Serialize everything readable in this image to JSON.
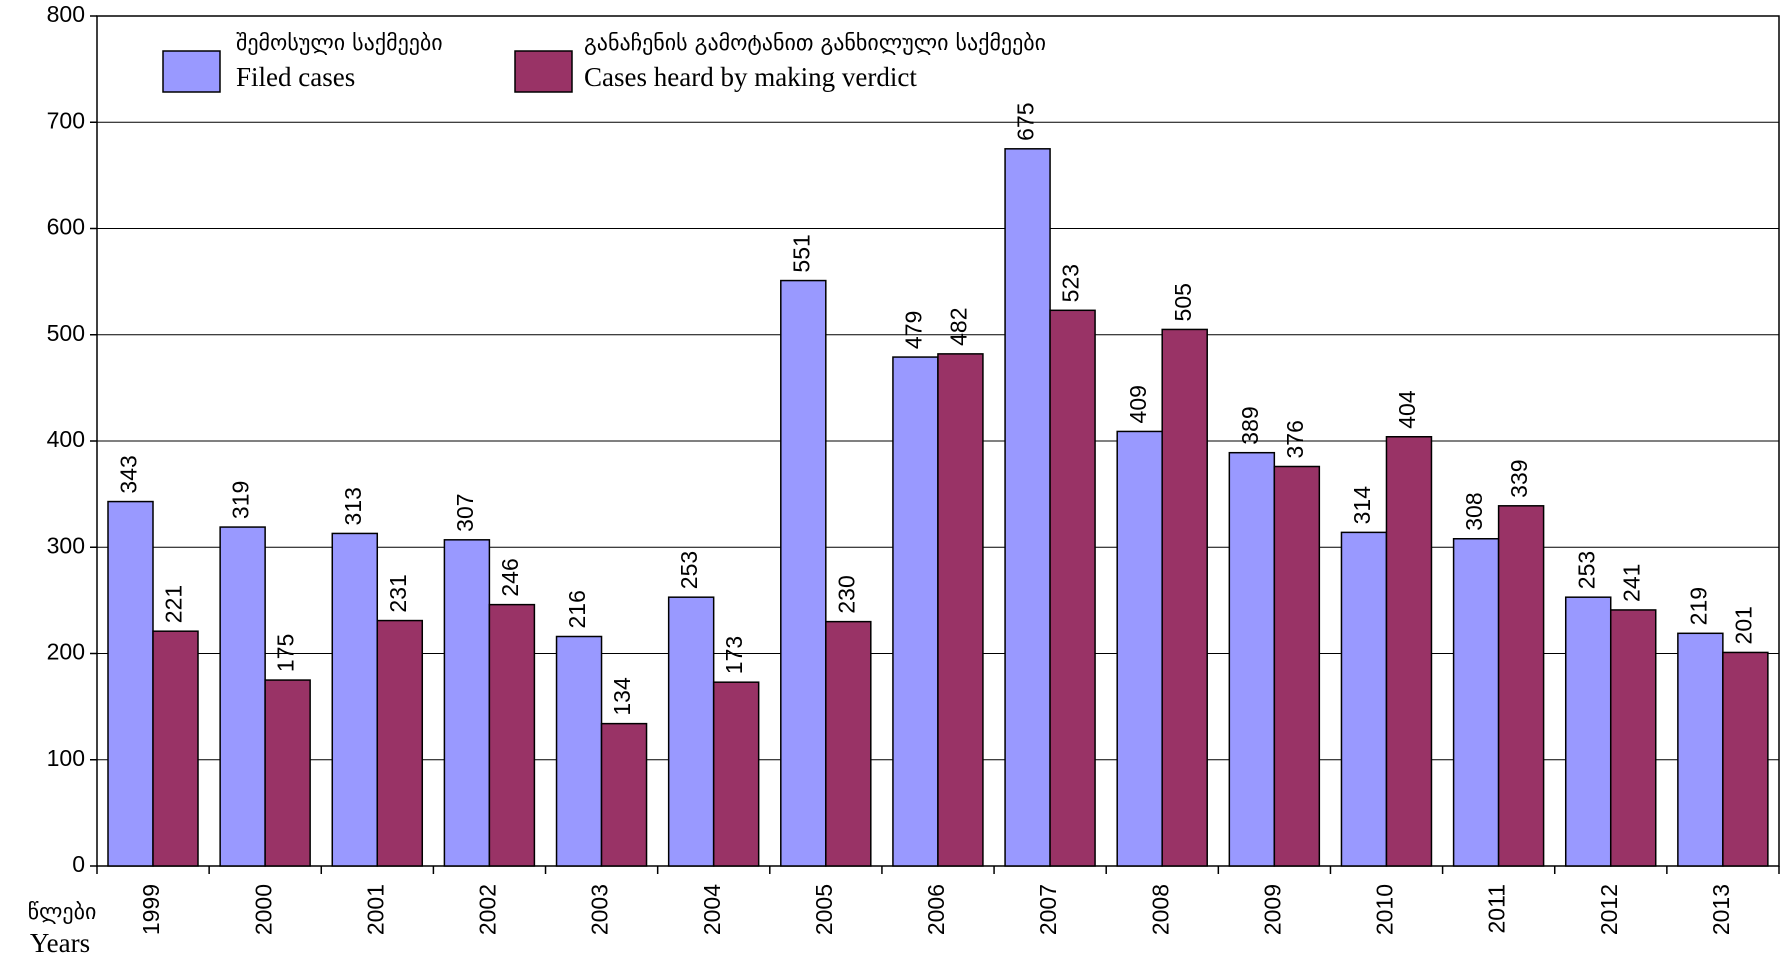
{
  "chart_data": {
    "type": "bar",
    "x_label": "წლები",
    "x_label_en": "Years",
    "categories": [
      "1999",
      "2000",
      "2001",
      "2002",
      "2003",
      "2004",
      "2005",
      "2006",
      "2007",
      "2008",
      "2009",
      "2010",
      "2011",
      "2012",
      "2013"
    ],
    "series": [
      {
        "name": "Filed cases",
        "name_ka": "შემოსული საქმეები",
        "color": "#9999ff",
        "values": [
          343,
          319,
          313,
          307,
          216,
          253,
          551,
          479,
          675,
          409,
          389,
          314,
          308,
          253,
          219
        ]
      },
      {
        "name": "Cases heard by making verdict",
        "name_ka": "განაჩენის გამოტანით განხილული საქმეები",
        "color": "#993366",
        "values": [
          221,
          175,
          231,
          246,
          134,
          173,
          230,
          482,
          523,
          505,
          376,
          404,
          339,
          241,
          201
        ]
      }
    ],
    "ylim": [
      0,
      800
    ],
    "yticks": [
      0,
      100,
      200,
      300,
      400,
      500,
      600,
      700,
      800
    ],
    "grid": true
  }
}
